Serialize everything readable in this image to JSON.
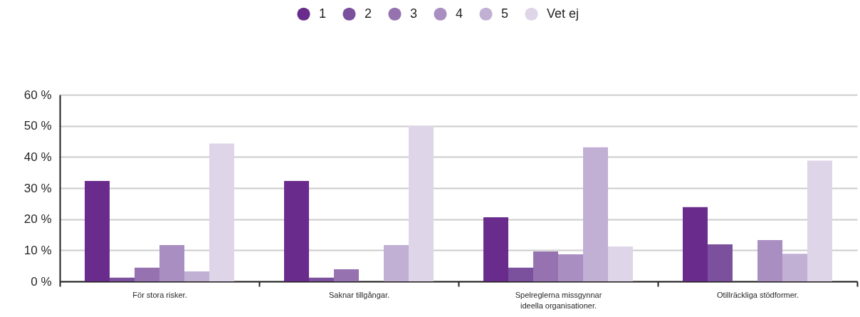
{
  "chart_data": {
    "type": "bar",
    "categories": [
      "För stora risker.",
      "Saknar tillgångar.",
      "Spelreglerna missgynnar ideella organisationer.",
      "Otillräckliga stödformer."
    ],
    "series": [
      {
        "name": "1",
        "color": "#6a2c8c",
        "values": [
          32.3,
          32.3,
          20.6,
          23.9
        ]
      },
      {
        "name": "2",
        "color": "#7b519d",
        "values": [
          1.2,
          1.2,
          4.4,
          11.9
        ]
      },
      {
        "name": "3",
        "color": "#9673b0",
        "values": [
          4.4,
          3.9,
          9.6,
          0
        ]
      },
      {
        "name": "4",
        "color": "#a98fc1",
        "values": [
          11.7,
          0,
          8.7,
          13.3
        ]
      },
      {
        "name": "5",
        "color": "#c1b0d4",
        "values": [
          3.2,
          11.7,
          43.1,
          8.9
        ]
      },
      {
        "name": "Vet ej",
        "color": "#ded5e8",
        "values": [
          44.3,
          50,
          11.2,
          38.8
        ]
      }
    ],
    "ylim": [
      0,
      60
    ],
    "yticks": [
      {
        "value": 0,
        "label": "0 %"
      },
      {
        "value": 10,
        "label": "10 %"
      },
      {
        "value": 20,
        "label": "20 %"
      },
      {
        "value": 30,
        "label": "30 %"
      },
      {
        "value": 40,
        "label": "40 %"
      },
      {
        "value": 50,
        "label": "50 %"
      },
      {
        "value": 60,
        "label": "60 %"
      }
    ],
    "grid": "y",
    "legend": "top"
  }
}
